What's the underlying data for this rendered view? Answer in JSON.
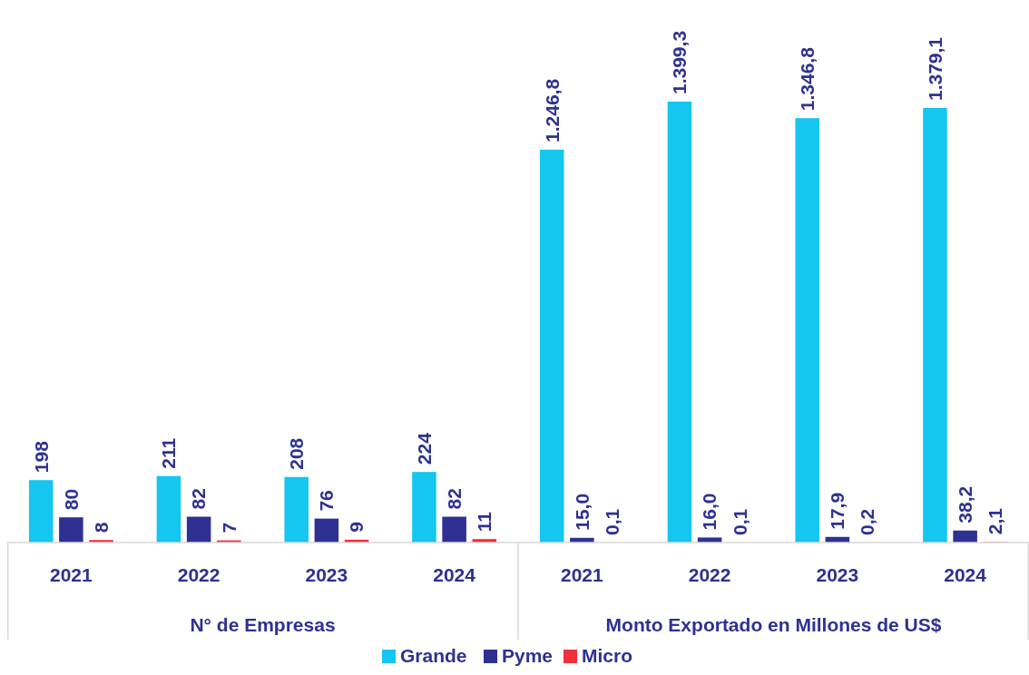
{
  "chart_data": {
    "type": "bar",
    "categories": [
      "2021",
      "2022",
      "2023",
      "2024",
      "2021",
      "2022",
      "2023",
      "2024"
    ],
    "annotations": [
      "N° de Empresas",
      "Monto Exportado en Millones de US$"
    ],
    "legend": "bottom",
    "series": [
      {
        "name": "Grande",
        "color": "#14c6f0",
        "values": [
          198,
          211,
          208,
          224,
          1246.8,
          1399.3,
          1346.8,
          1379.1
        ],
        "value_labels": [
          "198",
          "211",
          "208",
          "224",
          "1.246,8",
          "1.399,3",
          "1.346,8",
          "1.379,1"
        ]
      },
      {
        "name": "Pyme",
        "color": "#2e3192",
        "values": [
          80,
          82,
          76,
          82,
          15.0,
          16.0,
          17.9,
          38.2
        ],
        "value_labels": [
          "80",
          "82",
          "76",
          "82",
          "15,0",
          "16,0",
          "17,9",
          "38,2"
        ]
      },
      {
        "name": "Micro",
        "color": "#f0303a",
        "values": [
          8,
          7,
          9,
          11,
          0.1,
          0.1,
          0.2,
          2.1
        ],
        "value_labels": [
          "8",
          "7",
          "9",
          "11",
          "0,1",
          "0,1",
          "0,2",
          "2,1"
        ]
      }
    ]
  }
}
